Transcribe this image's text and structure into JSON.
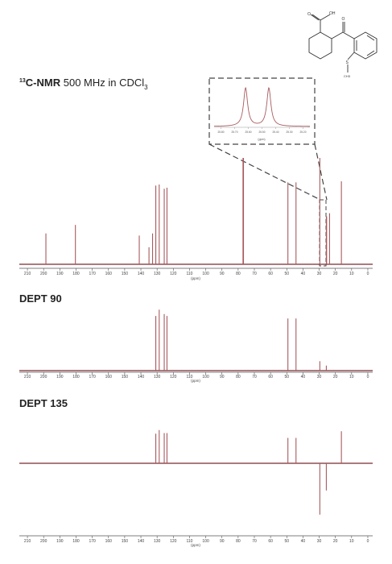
{
  "colors": {
    "peak": "#a85a5e",
    "peak_dark": "#7a2b30",
    "axis": "#555555",
    "box": "#444444",
    "text": "#222222"
  },
  "headings": {
    "main_prefix": "13",
    "main_bold": "C-NMR",
    "main_rest": " 500 MHz in CDCl",
    "main_sub": "3",
    "dept90": "DEPT 90",
    "dept135": "DEPT 135"
  },
  "axis": {
    "unit": "(ppm)",
    "ticks": [
      "210",
      "200",
      "190",
      "180",
      "170",
      "160",
      "150",
      "140",
      "130",
      "120",
      "110",
      "100",
      "90",
      "80",
      "70",
      "60",
      "50",
      "40",
      "30",
      "20",
      "10",
      "0"
    ]
  },
  "inset": {
    "unit": "(ppm)",
    "ticks": [
      "25.80",
      "25.70",
      "25.60",
      "25.50",
      "25.40",
      "25.30",
      "25.20"
    ]
  },
  "molecule": {
    "label_oh": "OH",
    "label_o": "O",
    "label_o2": "O",
    "label_s": "S",
    "label_ch3": "CH3"
  },
  "chart_data": [
    {
      "type": "line",
      "title": "13C-NMR 500 MHz in CDCl3",
      "xlabel": "(ppm)",
      "xlim": [
        215,
        -3
      ],
      "peaks": [
        {
          "ppm": 198.6,
          "intensity": 0.29
        },
        {
          "ppm": 180.4,
          "intensity": 0.37
        },
        {
          "ppm": 141.0,
          "intensity": 0.27
        },
        {
          "ppm": 135.0,
          "intensity": 0.16
        },
        {
          "ppm": 132.8,
          "intensity": 0.29
        },
        {
          "ppm": 130.8,
          "intensity": 0.74
        },
        {
          "ppm": 128.7,
          "intensity": 0.75
        },
        {
          "ppm": 125.6,
          "intensity": 0.71
        },
        {
          "ppm": 123.9,
          "intensity": 0.72
        },
        {
          "ppm": 77.0,
          "intensity": 1.0
        },
        {
          "ppm": 76.7,
          "intensity": 1.0
        },
        {
          "ppm": 49.3,
          "intensity": 0.77
        },
        {
          "ppm": 44.3,
          "intensity": 0.77
        },
        {
          "ppm": 29.6,
          "intensity": 1.0
        },
        {
          "ppm": 25.6,
          "intensity": 0.45
        },
        {
          "ppm": 25.4,
          "intensity": 0.45
        },
        {
          "ppm": 23.6,
          "intensity": 0.48
        },
        {
          "ppm": 16.3,
          "intensity": 0.78
        }
      ],
      "inset": {
        "xlim": [
          25.85,
          25.15
        ],
        "peaks": [
          {
            "ppm": 25.62,
            "intensity": 0.95
          },
          {
            "ppm": 25.45,
            "intensity": 0.95
          }
        ]
      }
    },
    {
      "type": "line",
      "title": "DEPT 90",
      "xlabel": "(ppm)",
      "xlim": [
        215,
        -3
      ],
      "peaks": [
        {
          "ppm": 130.8,
          "intensity": 0.87
        },
        {
          "ppm": 128.7,
          "intensity": 0.97
        },
        {
          "ppm": 125.6,
          "intensity": 0.9
        },
        {
          "ppm": 123.9,
          "intensity": 0.87
        },
        {
          "ppm": 49.3,
          "intensity": 0.83
        },
        {
          "ppm": 44.3,
          "intensity": 0.83
        },
        {
          "ppm": 29.6,
          "intensity": 0.15
        },
        {
          "ppm": 25.6,
          "intensity": 0.08
        }
      ]
    },
    {
      "type": "line",
      "title": "DEPT 135",
      "xlabel": "(ppm)",
      "xlim": [
        215,
        -3
      ],
      "peaks": [
        {
          "ppm": 130.8,
          "intensity": 0.49
        },
        {
          "ppm": 128.7,
          "intensity": 0.55
        },
        {
          "ppm": 125.6,
          "intensity": 0.5
        },
        {
          "ppm": 123.9,
          "intensity": 0.5
        },
        {
          "ppm": 49.3,
          "intensity": 0.42
        },
        {
          "ppm": 44.3,
          "intensity": 0.42
        },
        {
          "ppm": 29.6,
          "intensity": -0.85
        },
        {
          "ppm": 25.6,
          "intensity": -0.45
        },
        {
          "ppm": 16.3,
          "intensity": 0.53
        }
      ]
    }
  ]
}
